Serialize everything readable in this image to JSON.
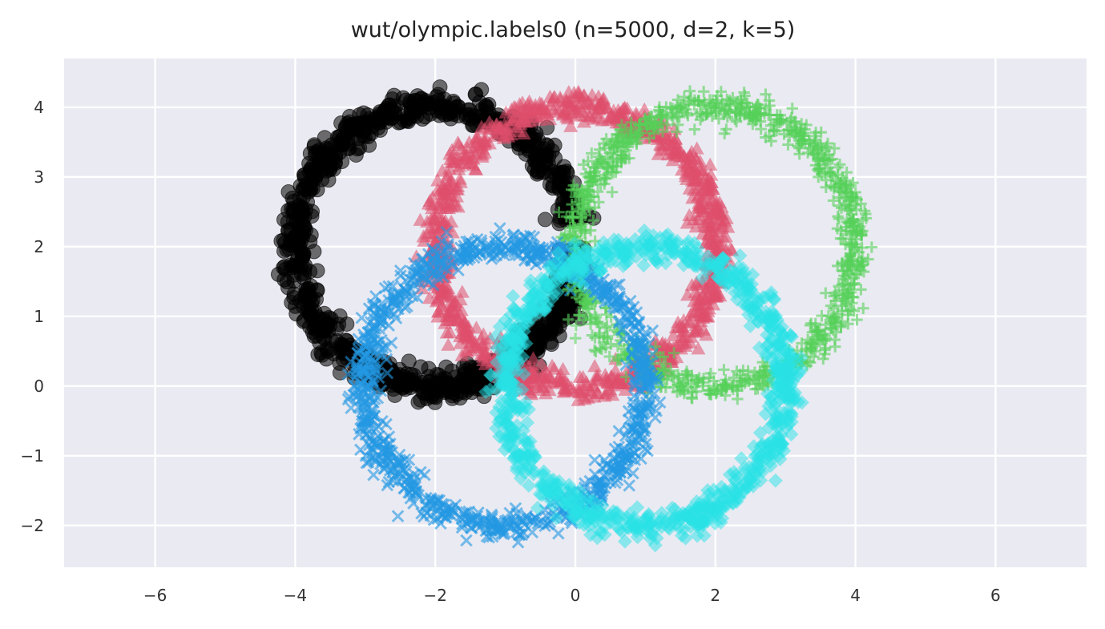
{
  "chart_data": {
    "type": "scatter",
    "title": "wut/olympic.labels0 (n=5000, d=2, k=5)",
    "xlabel": "",
    "ylabel": "",
    "xlim": [
      -7.3,
      7.3
    ],
    "ylim": [
      -2.6,
      4.7
    ],
    "xticks": [
      -6,
      -4,
      -2,
      0,
      2,
      4,
      6
    ],
    "yticks": [
      -2,
      -1,
      0,
      1,
      2,
      3,
      4
    ],
    "xtick_labels": [
      "−6",
      "−4",
      "−2",
      "0",
      "2",
      "4",
      "6"
    ],
    "ytick_labels": [
      "−2",
      "−1",
      "0",
      "1",
      "2",
      "3",
      "4"
    ],
    "grid": true,
    "background": "#eaeaf2",
    "series": [
      {
        "marker": "circle",
        "color": "#000000",
        "center": [
          -2,
          2
        ],
        "radius": 2,
        "arc_deg": [
          10,
          360
        ],
        "points": 1000
      },
      {
        "marker": "triangle",
        "color": "#df4f6b",
        "center": [
          0,
          2
        ],
        "radius": 2,
        "arc_deg": [
          0,
          360
        ],
        "points": 1000
      },
      {
        "marker": "plus",
        "color": "#55d159",
        "center": [
          2,
          2
        ],
        "radius": 2,
        "arc_deg": [
          0,
          360
        ],
        "points": 1000
      },
      {
        "marker": "x",
        "color": "#2398e2",
        "center": [
          -1,
          0
        ],
        "radius": 2,
        "arc_deg": [
          0,
          360
        ],
        "points": 1000
      },
      {
        "marker": "diamond",
        "color": "#27e2e6",
        "center": [
          1,
          0
        ],
        "radius": 2,
        "arc_deg": [
          0,
          360
        ],
        "points": 1000
      }
    ]
  }
}
